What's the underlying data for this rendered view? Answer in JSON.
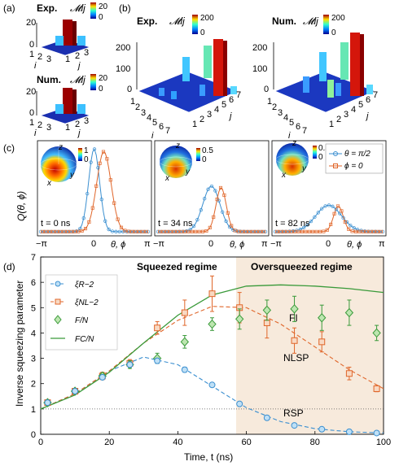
{
  "panel_a": {
    "label": "(a)",
    "exp_label": "Exp.",
    "num_label": "Num.",
    "matrix_symbol": "𝓜ij",
    "colorbar_ticks": [
      "20",
      "0"
    ],
    "z_ticks": [
      "0",
      "20"
    ],
    "i_ticks": [
      "1",
      "2",
      "3"
    ],
    "j_ticks": [
      "1",
      "2",
      "3"
    ],
    "i_label": "i",
    "j_label": "j"
  },
  "panel_b": {
    "label": "(b)",
    "exp_label": "Exp.",
    "num_label": "Num.",
    "matrix_symbol": "𝓜ij",
    "colorbar_ticks": [
      "200",
      "0"
    ],
    "z_ticks": [
      "0",
      "100",
      "200"
    ],
    "i_ticks": [
      "1",
      "2",
      "3",
      "4",
      "5",
      "6",
      "7"
    ],
    "j_ticks": [
      "1",
      "2",
      "3",
      "4",
      "5",
      "6",
      "7"
    ],
    "i_label": "i",
    "j_label": "j"
  },
  "panel_c": {
    "label": "(c)",
    "ylabel": "Q(θ, ϕ)",
    "xlabel": "θ, ϕ",
    "x_ticks": [
      "−π",
      "0",
      "π"
    ],
    "legend": [
      "θ = π/2",
      "ϕ = 0"
    ],
    "colors": {
      "theta": "#3b8fd0",
      "phi": "#e0662a"
    },
    "subpanels": [
      {
        "time": "t = 0 ns",
        "colorbar_top": "1",
        "colorbar_bottom": "0"
      },
      {
        "time": "t = 34 ns",
        "colorbar_top": "0.5",
        "colorbar_bottom": "0"
      },
      {
        "time": "t = 82 ns",
        "colorbar_top": "0.3",
        "colorbar_bottom": "0"
      }
    ],
    "sphere_axes": [
      "x",
      "y",
      "z"
    ]
  },
  "panel_d": {
    "label": "(d)",
    "regime_squeezed": "Squeezed regime",
    "regime_oversqueezed": "Oversqueezed regime",
    "annot_fi": "FI",
    "annot_nlsp": "NLSP",
    "annot_rsp": "RSP",
    "legend": [
      "ξR−2",
      "ξNL−2",
      "F/N",
      "FC/N"
    ],
    "colors": {
      "rsp": "#3b8fd0",
      "nlsp": "#e0662a",
      "fi_points": "#3a9a3a",
      "fc_line": "#3a9a3a",
      "shade": "#f7eadc"
    }
  },
  "chart_data": {
    "type": "scatter",
    "xlabel": "Time, t (ns)",
    "ylabel": "Inverse squeezing parameter",
    "xlim": [
      0,
      100
    ],
    "ylim": [
      0,
      7
    ],
    "x_ticks": [
      "0",
      "20",
      "40",
      "60",
      "80",
      "100"
    ],
    "y_ticks": [
      "0",
      "1",
      "2",
      "3",
      "4",
      "5",
      "6",
      "7"
    ],
    "grid": false,
    "legend_position": "top-left",
    "oversqueezed_start": 57,
    "series": [
      {
        "name": "ξR−2",
        "x": [
          2,
          10,
          18,
          26,
          34,
          42,
          50,
          58,
          66,
          74,
          82,
          90,
          98
        ],
        "y": [
          1.25,
          1.7,
          2.25,
          2.75,
          2.9,
          2.55,
          1.95,
          1.2,
          0.65,
          0.35,
          0.2,
          0.1,
          0.05
        ],
        "err": [
          0.05,
          0.05,
          0.08,
          0.1,
          0.1,
          0.1,
          0.08,
          0.06,
          0.05,
          0.05,
          0.05,
          0.05,
          0.05
        ]
      },
      {
        "name": "ξNL−2",
        "x": [
          2,
          10,
          18,
          26,
          34,
          42,
          50,
          58,
          66,
          74,
          82,
          90,
          98
        ],
        "y": [
          1.25,
          1.7,
          2.3,
          2.8,
          4.2,
          4.8,
          5.55,
          5.0,
          4.4,
          3.7,
          3.65,
          2.4,
          1.8
        ],
        "err": [
          0.1,
          0.1,
          0.15,
          0.15,
          0.25,
          0.5,
          0.7,
          0.6,
          0.6,
          0.5,
          0.4,
          0.25,
          0.12
        ]
      },
      {
        "name": "F/N",
        "x": [
          2,
          10,
          18,
          26,
          34,
          42,
          50,
          58,
          66,
          74,
          82,
          90,
          98
        ],
        "y": [
          1.25,
          1.7,
          2.3,
          2.75,
          3.0,
          3.65,
          4.35,
          4.55,
          4.9,
          4.95,
          4.6,
          4.8,
          4.0
        ],
        "err": [
          0.1,
          0.1,
          0.12,
          0.15,
          0.2,
          0.25,
          0.25,
          0.4,
          0.4,
          0.5,
          0.5,
          0.5,
          0.3
        ]
      },
      {
        "name": "FC/N",
        "x": [
          0,
          10,
          20,
          30,
          40,
          50,
          60,
          70,
          80,
          90,
          100
        ],
        "y": [
          1.0,
          1.55,
          2.45,
          3.6,
          4.7,
          5.5,
          5.85,
          5.9,
          5.85,
          5.75,
          5.6
        ]
      },
      {
        "name": "RSP theory",
        "x": [
          0,
          10,
          20,
          30,
          40,
          50,
          60,
          70,
          80,
          90,
          100
        ],
        "y": [
          1.0,
          1.6,
          2.5,
          3.05,
          2.75,
          1.9,
          1.05,
          0.5,
          0.22,
          0.1,
          0.05
        ]
      },
      {
        "name": "NLSP theory",
        "x": [
          0,
          10,
          20,
          30,
          40,
          50,
          60,
          70,
          80,
          90,
          100
        ],
        "y": [
          1.0,
          1.6,
          2.5,
          3.6,
          4.5,
          5.05,
          5.0,
          4.35,
          3.45,
          2.55,
          1.8
        ]
      },
      {
        "name": "baseline",
        "x": [
          0,
          100
        ],
        "y": [
          1,
          1
        ]
      }
    ]
  }
}
